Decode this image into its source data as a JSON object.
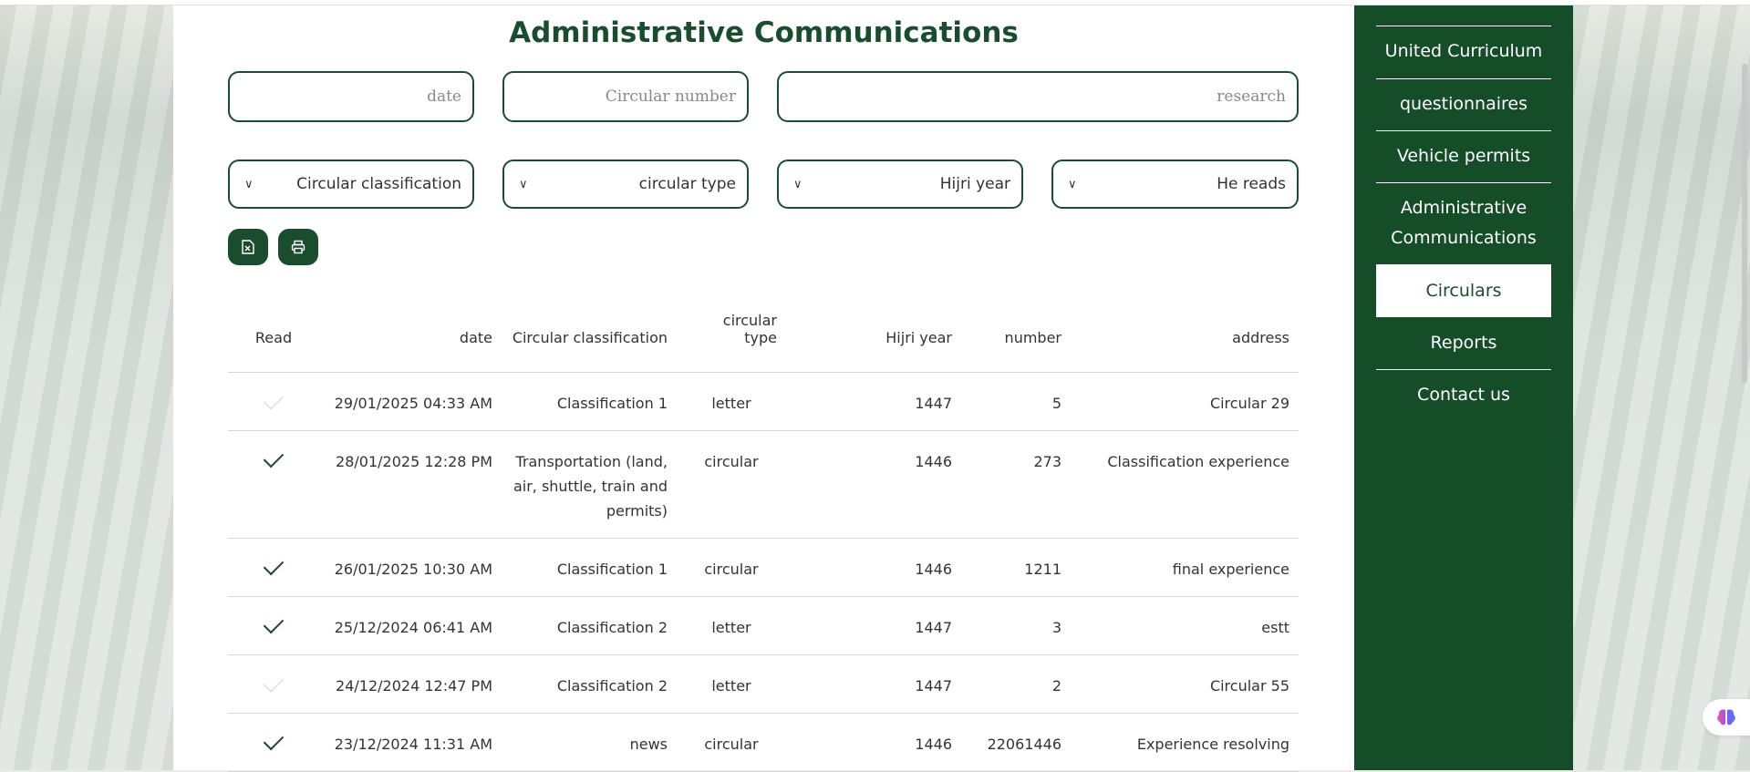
{
  "page": {
    "title": "Administrative Communications"
  },
  "filters": {
    "date_placeholder": "date",
    "circular_number_placeholder": "Circular number",
    "search_placeholder": "research",
    "classification": "Circular classification",
    "type": "circular type",
    "hijri_year": "Hijri year",
    "read": "He reads"
  },
  "toolbar": {
    "export_icon": "excel-file-icon",
    "print_icon": "printer-icon"
  },
  "table": {
    "headers": {
      "read": "Read",
      "date": "date",
      "classification": "Circular classification",
      "type": "circular type",
      "year": "Hijri year",
      "number": "number",
      "address": "address"
    },
    "rows": [
      {
        "read": false,
        "date": "29/01/2025 04:33 AM",
        "classification": "Classification 1",
        "type": "letter",
        "year": "1447",
        "number": "5",
        "address": "Circular 29"
      },
      {
        "read": true,
        "date": "28/01/2025 12:28 PM",
        "classification": "Transportation (land, air, shuttle, train and permits)",
        "type": "circular",
        "year": "1446",
        "number": "273",
        "address": "Classification experience"
      },
      {
        "read": true,
        "date": "26/01/2025 10:30 AM",
        "classification": "Classification 1",
        "type": "circular",
        "year": "1446",
        "number": "1211",
        "address": "final experience"
      },
      {
        "read": true,
        "date": "25/12/2024 06:41 AM",
        "classification": "Classification 2",
        "type": "letter",
        "year": "1447",
        "number": "3",
        "address": "estt"
      },
      {
        "read": false,
        "date": "24/12/2024 12:47 PM",
        "classification": "Classification 2",
        "type": "letter",
        "year": "1447",
        "number": "2",
        "address": "Circular 55"
      },
      {
        "read": true,
        "date": "23/12/2024 11:31 AM",
        "classification": "news",
        "type": "circular",
        "year": "1446",
        "number": "22061446",
        "address": "Experience resolving"
      }
    ]
  },
  "sidebar": {
    "items": [
      {
        "label": "United Curriculum"
      },
      {
        "label": "questionnaires"
      },
      {
        "label": "Vehicle permits"
      },
      {
        "label": "Administrative Communications"
      },
      {
        "label": "Circulars",
        "active": true
      },
      {
        "label": "Reports"
      },
      {
        "label": "Contact us"
      }
    ]
  },
  "colors": {
    "brand": "#154d29",
    "accent": "#1a4d2e"
  }
}
